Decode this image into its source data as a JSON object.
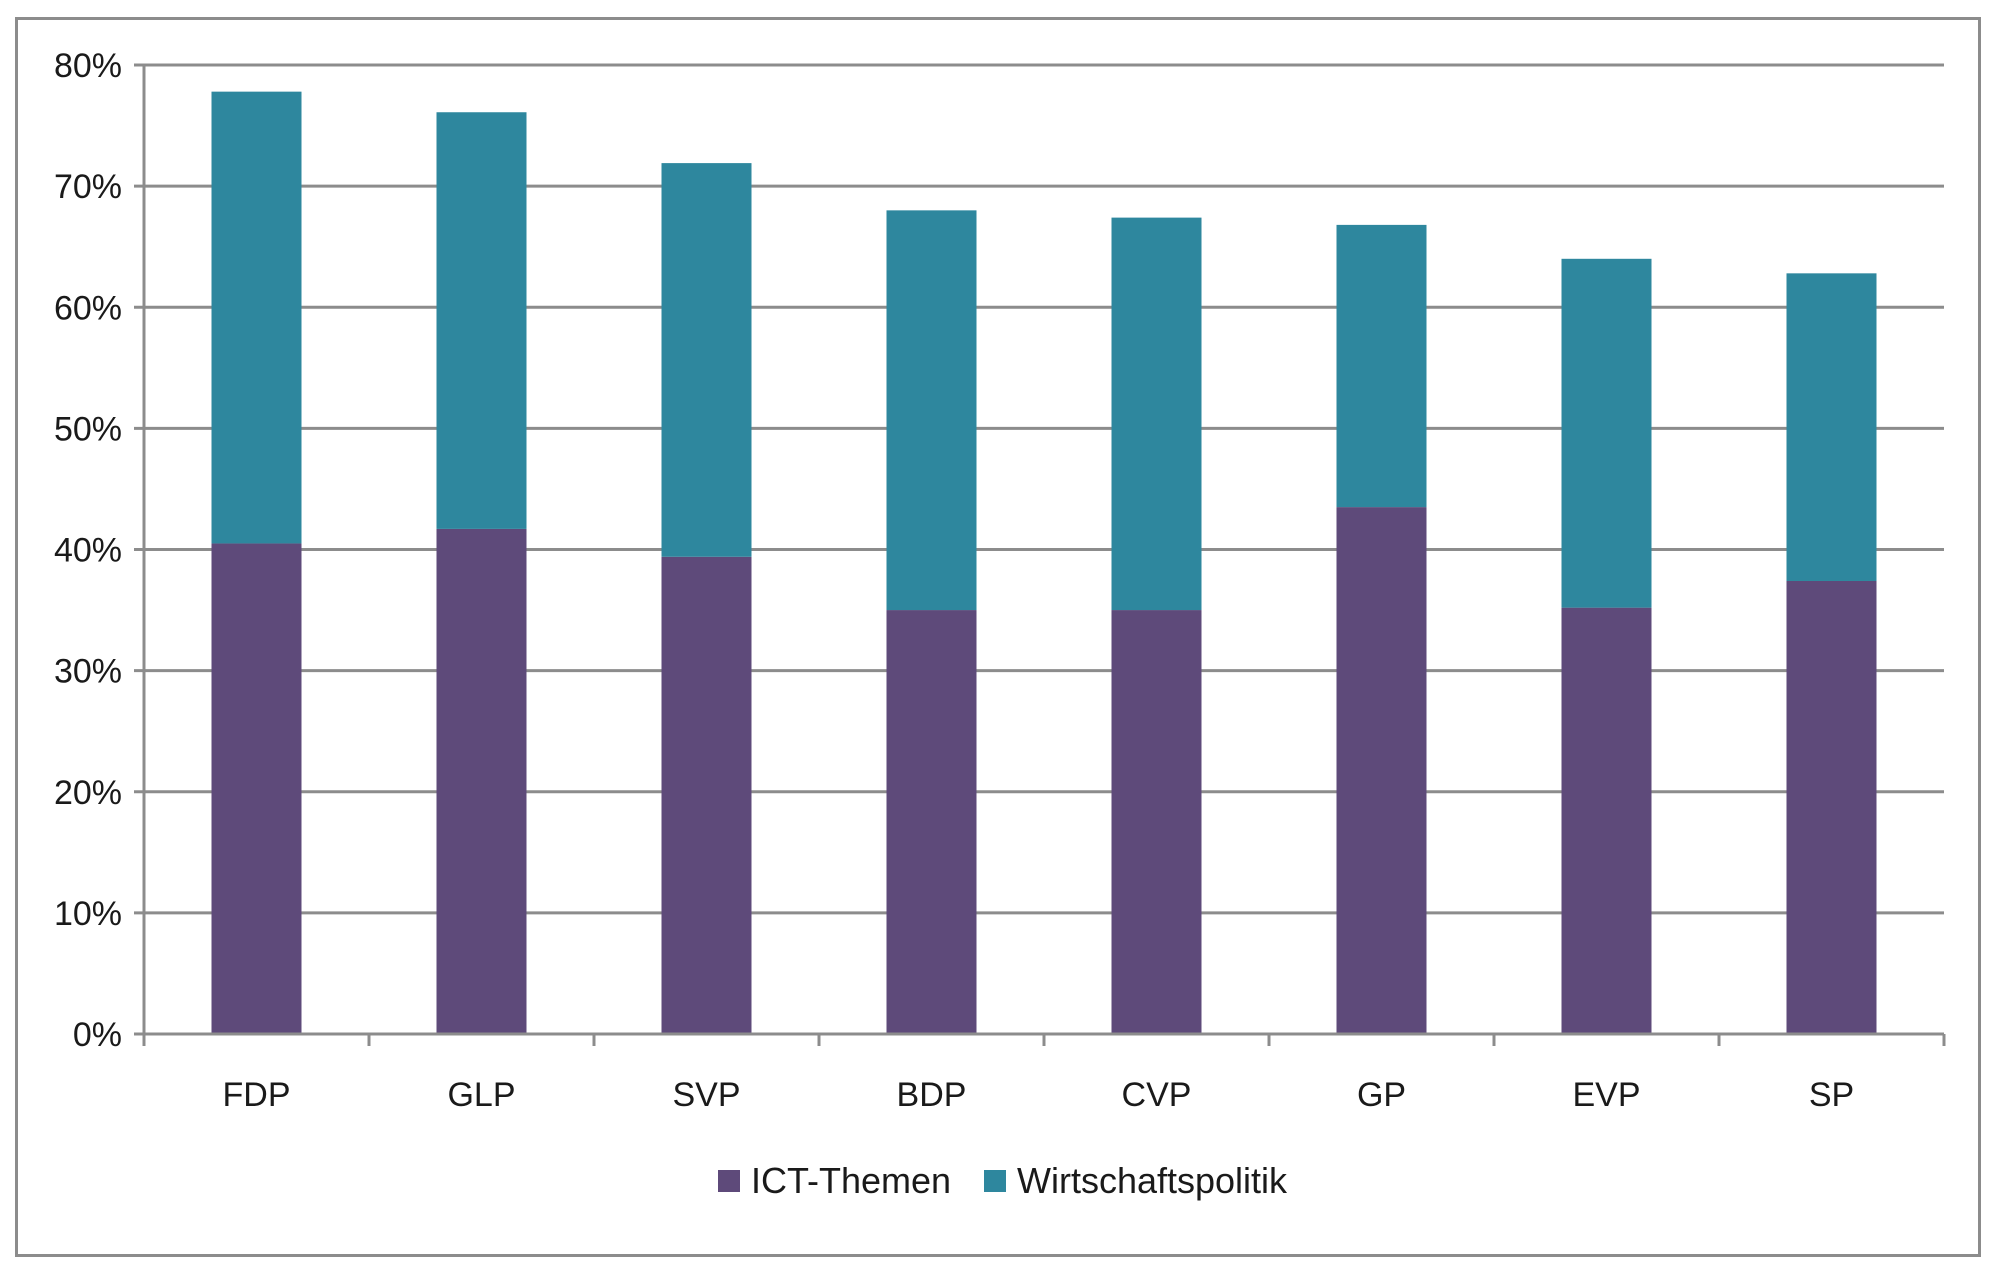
{
  "chart_data": {
    "type": "bar",
    "stacked": true,
    "categories": [
      "FDP",
      "GLP",
      "SVP",
      "BDP",
      "CVP",
      "GP",
      "EVP",
      "SP"
    ],
    "series": [
      {
        "name": "ICT-Themen",
        "color": "#5e4a7a",
        "values": [
          40.5,
          41.7,
          39.4,
          35.0,
          35.0,
          43.5,
          35.2,
          37.4
        ]
      },
      {
        "name": "Wirtschaftspolitik",
        "color": "#2e879e",
        "values": [
          37.3,
          34.4,
          32.5,
          33.0,
          32.4,
          23.3,
          28.8,
          25.4
        ]
      }
    ],
    "ylim": [
      0,
      80
    ],
    "yticks": [
      0,
      10,
      20,
      30,
      40,
      50,
      60,
      70,
      80
    ],
    "ytick_labels": [
      "0%",
      "10%",
      "20%",
      "30%",
      "40%",
      "50%",
      "60%",
      "70%",
      "80%"
    ],
    "grid": true,
    "legend_position": "bottom",
    "title": "",
    "xlabel": "",
    "ylabel": ""
  }
}
